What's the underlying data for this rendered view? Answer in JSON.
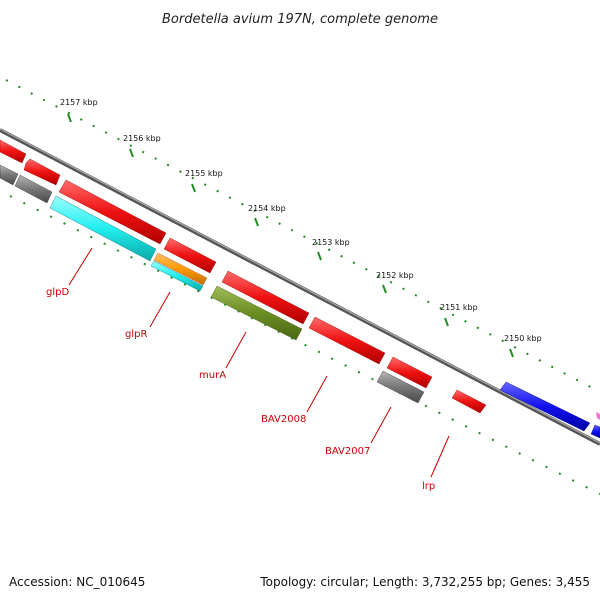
{
  "title": "Bordetella avium 197N, complete genome",
  "ticks": [
    "2157 kbp",
    "2156 kbp",
    "2155 kbp",
    "2154 kbp",
    "2153 kbp",
    "2152 kbp",
    "2151 kbp",
    "2150 kbp"
  ],
  "genes": [
    "glpD",
    "glpR",
    "murA",
    "BAV2008",
    "BAV2007",
    "lrp"
  ],
  "footer": {
    "accession": "Accession: NC_010645",
    "topology": "Topology: circular; Length: 3,732,255 bp; Genes: 3,455"
  },
  "colors": {
    "red": "#ee1111",
    "cyan": "#22eeee",
    "orange": "#ff9900",
    "olive": "#6b8e23",
    "grey": "#777777",
    "blue": "#1111ee",
    "tick_green": "#228b22",
    "label_red": "#cc0000"
  }
}
